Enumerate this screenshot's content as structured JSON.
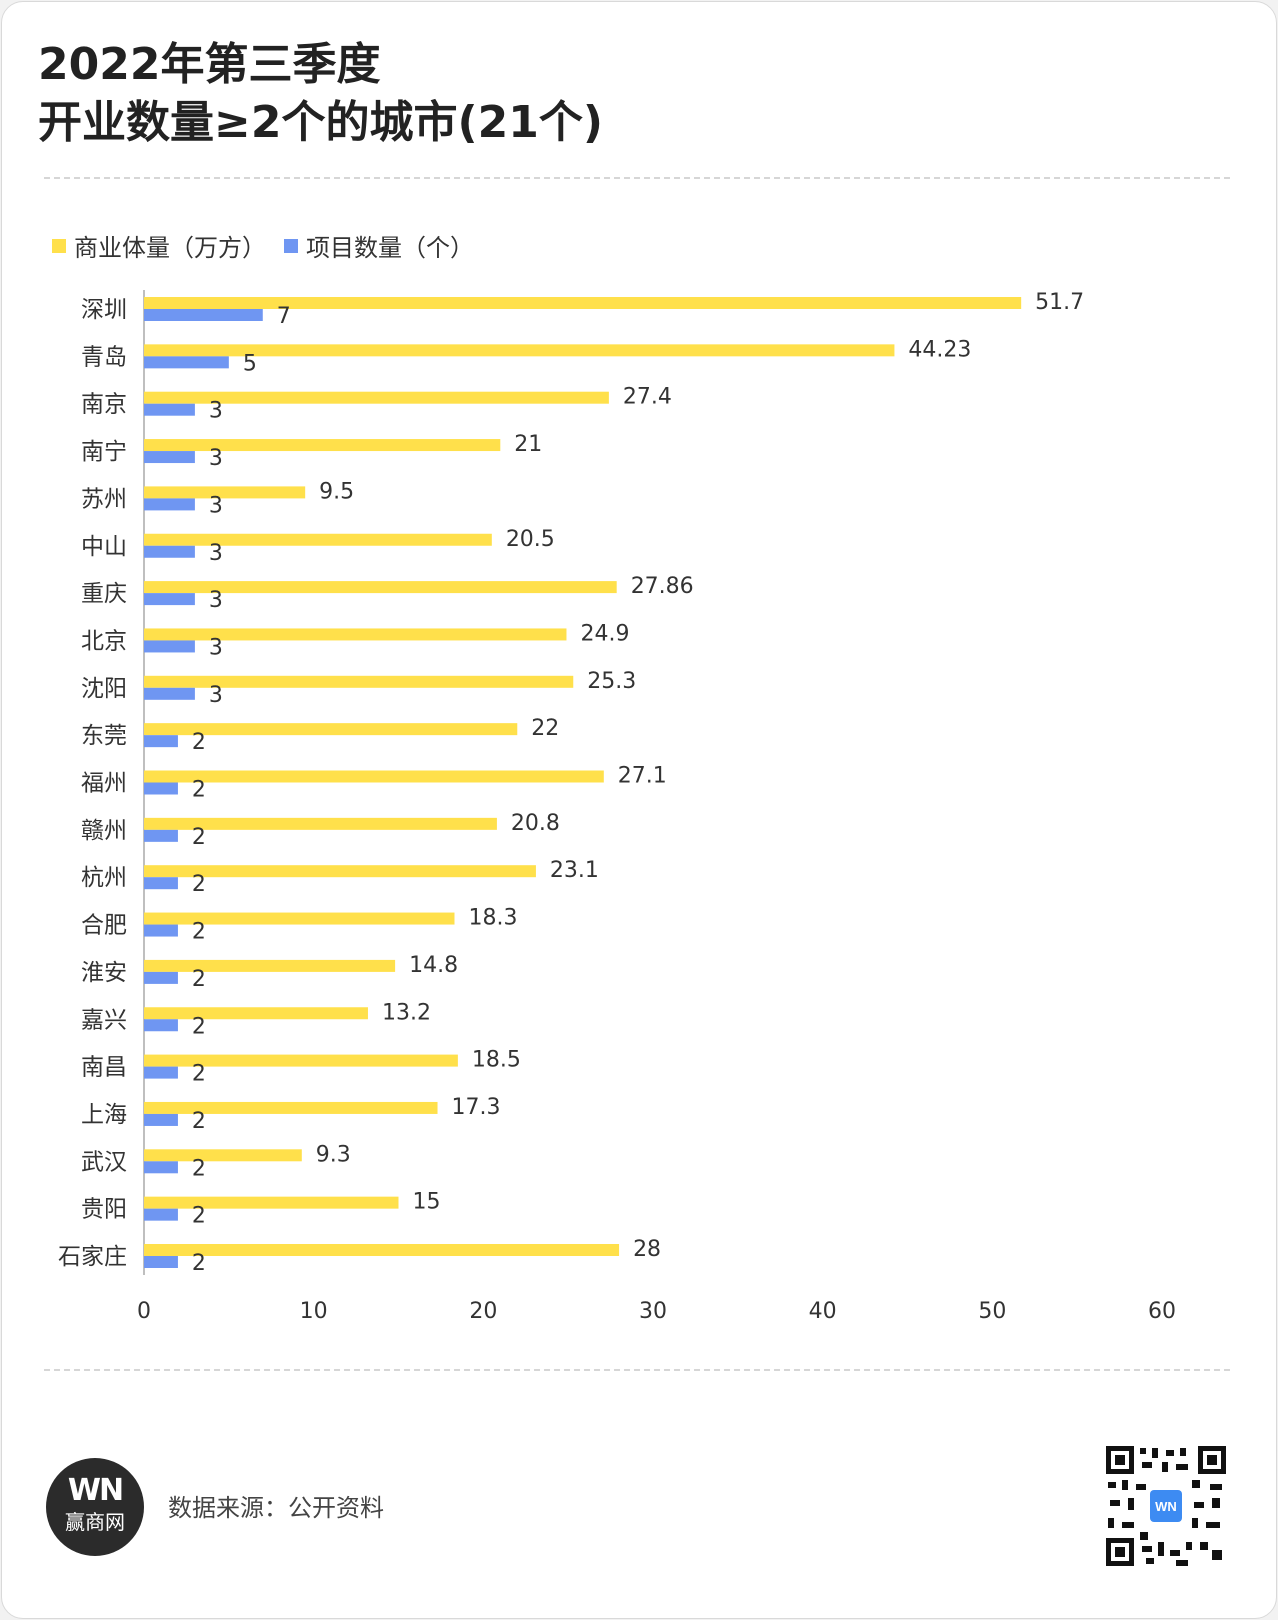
{
  "title_line1": "2022年第三季度",
  "title_line2": "开业数量≥2个的城市(21个)",
  "source": "数据来源：公开资料",
  "brand": {
    "mark": "WN",
    "name": "赢商网",
    "qr_center": "WN"
  },
  "colors": {
    "volume": "#FFE04B",
    "count": "#6F96F2",
    "axis": "#bfbfbf",
    "text": "#333333"
  },
  "chart_data": {
    "type": "bar",
    "orientation": "horizontal",
    "categories": [
      "深圳",
      "青岛",
      "南京",
      "南宁",
      "苏州",
      "中山",
      "重庆",
      "北京",
      "沈阳",
      "东莞",
      "福州",
      "赣州",
      "杭州",
      "合肥",
      "淮安",
      "嘉兴",
      "南昌",
      "上海",
      "武汉",
      "贵阳",
      "石家庄"
    ],
    "series": [
      {
        "name": "商业体量（万方）",
        "values": [
          51.7,
          44.23,
          27.4,
          21,
          9.5,
          20.5,
          27.86,
          24.9,
          25.3,
          22,
          27.1,
          20.8,
          23.1,
          18.3,
          14.8,
          13.2,
          18.5,
          17.3,
          9.3,
          15,
          28
        ]
      },
      {
        "name": "项目数量（个）",
        "values": [
          7,
          5,
          3,
          3,
          3,
          3,
          3,
          3,
          3,
          2,
          2,
          2,
          2,
          2,
          2,
          2,
          2,
          2,
          2,
          2,
          2
        ]
      }
    ],
    "xlim": [
      0,
      60
    ],
    "xticks": [
      0,
      10,
      20,
      30,
      40,
      50,
      60
    ],
    "legend": "top-left",
    "grid": false
  }
}
